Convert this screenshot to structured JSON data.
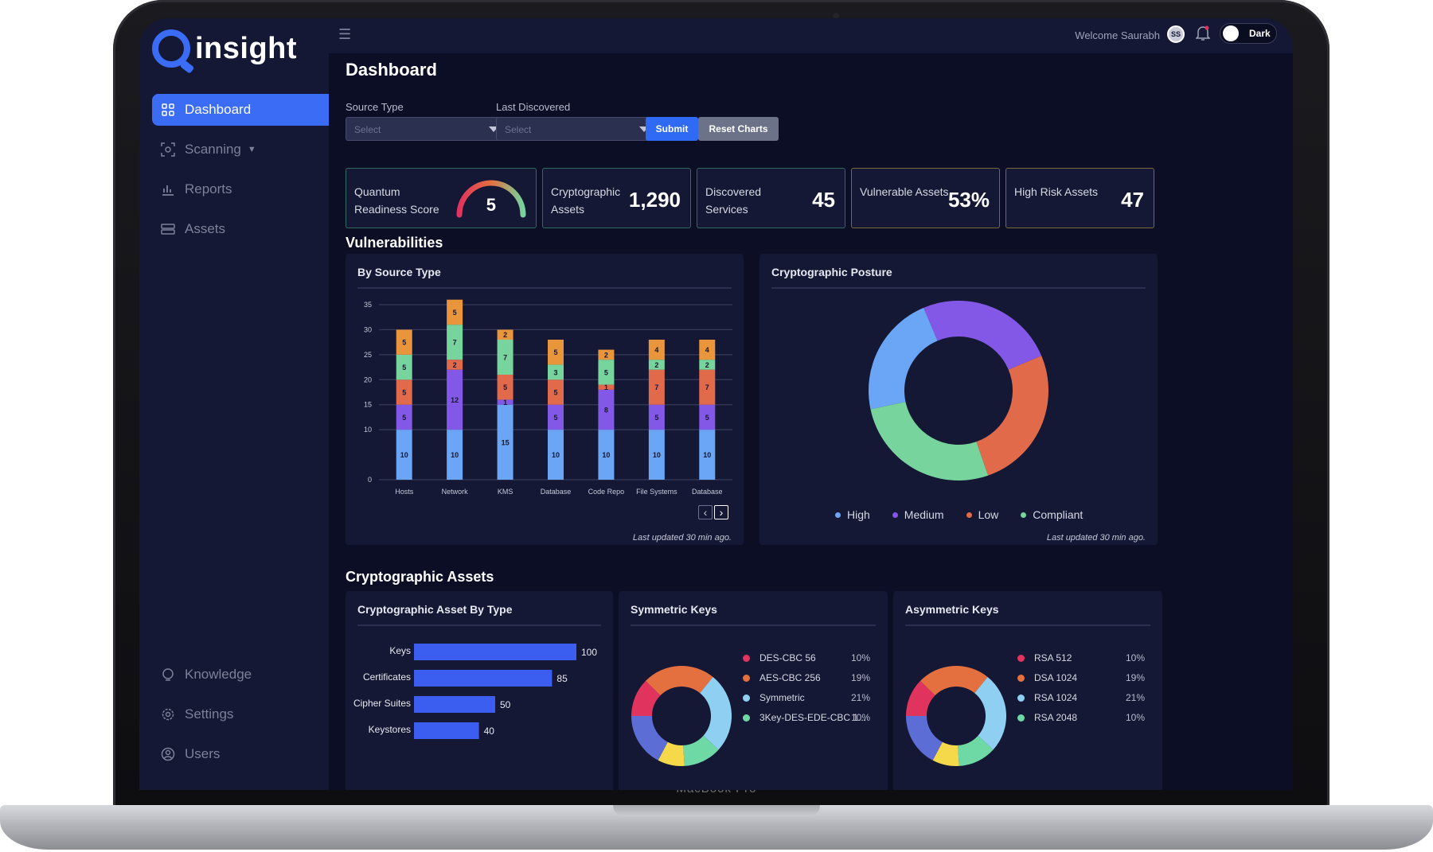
{
  "device": {
    "base_text": "MacBook Pro"
  },
  "app": {
    "name": "insight"
  },
  "sidebar": {
    "items": [
      {
        "label": "Dashboard",
        "icon": "grid-icon",
        "active": true
      },
      {
        "label": "Scanning",
        "icon": "scan-icon",
        "dropdown": true
      },
      {
        "label": "Reports",
        "icon": "chart-icon"
      },
      {
        "label": "Assets",
        "icon": "assets-icon"
      }
    ],
    "bottom_items": [
      {
        "label": "Knowledge",
        "icon": "bulb-icon"
      },
      {
        "label": "Settings",
        "icon": "gear-icon"
      },
      {
        "label": "Users",
        "icon": "user-icon"
      }
    ]
  },
  "topbar": {
    "welcome": "Welcome Saurabh",
    "avatar_initials": "SS",
    "theme_label": "Dark"
  },
  "page": {
    "title": "Dashboard"
  },
  "filters": {
    "source_type_label": "Source Type",
    "source_type_placeholder": "Select",
    "last_discovered_label": "Last Discovered",
    "last_discovered_placeholder": "Select",
    "submit_label": "Submit",
    "reset_label": "Reset Charts"
  },
  "kpis": [
    {
      "label": "Quantum Readiness Score",
      "value": "5",
      "border": "#2e6b5e"
    },
    {
      "label": "Cryptographic Assets",
      "value": "1,290",
      "border": "#2e6b5e"
    },
    {
      "label": "Discovered Services",
      "value": "45",
      "border": "#2e6b5e"
    },
    {
      "label": "Vulnerable Assets",
      "value": "53%",
      "border": "#7a6a3a"
    },
    {
      "label": "High Risk Assets",
      "value": "47",
      "border": "#7a6a3a"
    }
  ],
  "sections": {
    "vulnerabilities": "Vulnerabilities",
    "crypto_assets": "Cryptographic Assets"
  },
  "cards": {
    "by_source_type": {
      "title": "By Source Type",
      "footnote": "Last updated 30 min ago."
    },
    "posture": {
      "title": "Cryptographic Posture",
      "footnote": "Last updated 30 min ago."
    },
    "asset_by_type": {
      "title": "Cryptographic Asset By Type"
    },
    "symmetric": {
      "title": "Symmetric Keys"
    },
    "asymmetric": {
      "title": "Asymmetric Keys"
    }
  },
  "colors": {
    "high": "#6aa6f5",
    "medium": "#8458e6",
    "low": "#e06a4a",
    "compliant": "#76d49c",
    "extra": "#e8953b",
    "bar_blue": "#3b5ef0",
    "key_pink": "#e0345e",
    "key_orange": "#e5703f",
    "key_sky": "#8fd0f2",
    "key_mint": "#6fd9a6",
    "key_yellow": "#f6d94a",
    "key_indigo": "#5c6dd6"
  },
  "chart_data": [
    {
      "type": "bar",
      "stacked": true,
      "title": "By Source Type",
      "categories": [
        "Hosts",
        "Network",
        "KMS",
        "Database",
        "Code Repo",
        "File Systems",
        "Database"
      ],
      "ylim": [
        0,
        35
      ],
      "yticks": [
        0,
        10,
        15,
        20,
        25,
        30,
        35
      ],
      "grid": true,
      "series": [
        {
          "name": "High",
          "color": "#6aa6f5",
          "values": [
            10,
            10,
            15,
            10,
            10,
            10,
            10
          ]
        },
        {
          "name": "Medium",
          "color": "#8458e6",
          "values": [
            5,
            12,
            1,
            5,
            8,
            5,
            5
          ]
        },
        {
          "name": "Low",
          "color": "#e06a4a",
          "values": [
            5,
            2,
            5,
            5,
            1,
            7,
            7
          ]
        },
        {
          "name": "Compliant",
          "color": "#76d49c",
          "values": [
            5,
            7,
            7,
            3,
            5,
            2,
            2
          ]
        },
        {
          "color": "#e8953b",
          "values": [
            5,
            5,
            2,
            5,
            2,
            4,
            4
          ]
        }
      ]
    },
    {
      "type": "pie",
      "donut": true,
      "title": "Cryptographic Posture",
      "legend_position": "bottom",
      "slices": [
        {
          "name": "High",
          "value": 22,
          "color": "#6aa6f5"
        },
        {
          "name": "Medium",
          "value": 25,
          "color": "#8458e6"
        },
        {
          "name": "Low",
          "value": 26,
          "color": "#e06a4a"
        },
        {
          "name": "Compliant",
          "value": 27,
          "color": "#76d49c"
        }
      ]
    },
    {
      "type": "bar",
      "orientation": "horizontal",
      "title": "Cryptographic Asset By Type",
      "categories": [
        "Keys",
        "Certificates",
        "Cipher Suites",
        "Keystores"
      ],
      "values": [
        100,
        85,
        50,
        40
      ],
      "xlim": [
        0,
        100
      ]
    },
    {
      "type": "pie",
      "donut": true,
      "title": "Symmetric Keys",
      "slices": [
        {
          "name": "DES-CBC 56",
          "value": 10,
          "label": "10%",
          "color": "#e0345e"
        },
        {
          "name": "AES-CBC 256",
          "value": 19,
          "label": "19%",
          "color": "#e5703f"
        },
        {
          "name": "Symmetric",
          "value": 21,
          "label": "21%",
          "color": "#8fd0f2"
        },
        {
          "name": "3Key-DES-EDE-CBC 1...",
          "value": 10,
          "label": "10%",
          "color": "#6fd9a6"
        }
      ]
    },
    {
      "type": "pie",
      "donut": true,
      "title": "Asymmetric Keys",
      "slices": [
        {
          "name": "RSA 512",
          "value": 10,
          "label": "10%",
          "color": "#e0345e"
        },
        {
          "name": "DSA 1024",
          "value": 19,
          "label": "19%",
          "color": "#e5703f"
        },
        {
          "name": "RSA 1024",
          "value": 21,
          "label": "21%",
          "color": "#8fd0f2"
        },
        {
          "name": "RSA 2048",
          "value": 10,
          "label": "10%",
          "color": "#6fd9a6"
        }
      ]
    }
  ],
  "pager": {
    "prev": "‹",
    "next": "›"
  }
}
